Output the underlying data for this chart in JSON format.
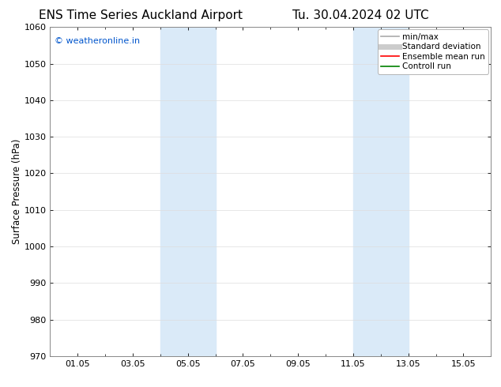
{
  "title_left": "ENS Time Series Auckland Airport",
  "title_right": "Tu. 30.04.2024 02 UTC",
  "ylabel": "Surface Pressure (hPa)",
  "ylim": [
    970,
    1060
  ],
  "yticks": [
    970,
    980,
    990,
    1000,
    1010,
    1020,
    1030,
    1040,
    1050,
    1060
  ],
  "xtick_labels": [
    "01.05",
    "03.05",
    "05.05",
    "07.05",
    "09.05",
    "11.05",
    "13.05",
    "15.05"
  ],
  "xtick_positions": [
    1,
    3,
    5,
    7,
    9,
    11,
    13,
    15
  ],
  "xlim": [
    0,
    16
  ],
  "shade_bands": [
    {
      "x_start": 4.0,
      "x_end": 6.0
    },
    {
      "x_start": 11.0,
      "x_end": 13.0
    }
  ],
  "shade_color": "#daeaf8",
  "watermark_text": "© weatheronline.in",
  "watermark_color": "#0055cc",
  "watermark_fontsize": 8,
  "legend_items": [
    {
      "label": "min/max",
      "color": "#aaaaaa",
      "lw": 1.2,
      "linestyle": "-"
    },
    {
      "label": "Standard deviation",
      "color": "#cccccc",
      "lw": 5,
      "linestyle": "-"
    },
    {
      "label": "Ensemble mean run",
      "color": "#ff0000",
      "lw": 1.2,
      "linestyle": "-"
    },
    {
      "label": "Controll run",
      "color": "#008000",
      "lw": 1.2,
      "linestyle": "-"
    }
  ],
  "bg_color": "#ffffff",
  "axes_bg_color": "#ffffff",
  "grid_color": "#dddddd",
  "title_fontsize": 11,
  "tick_label_fontsize": 8,
  "ylabel_fontsize": 8.5,
  "legend_fontsize": 7.5
}
